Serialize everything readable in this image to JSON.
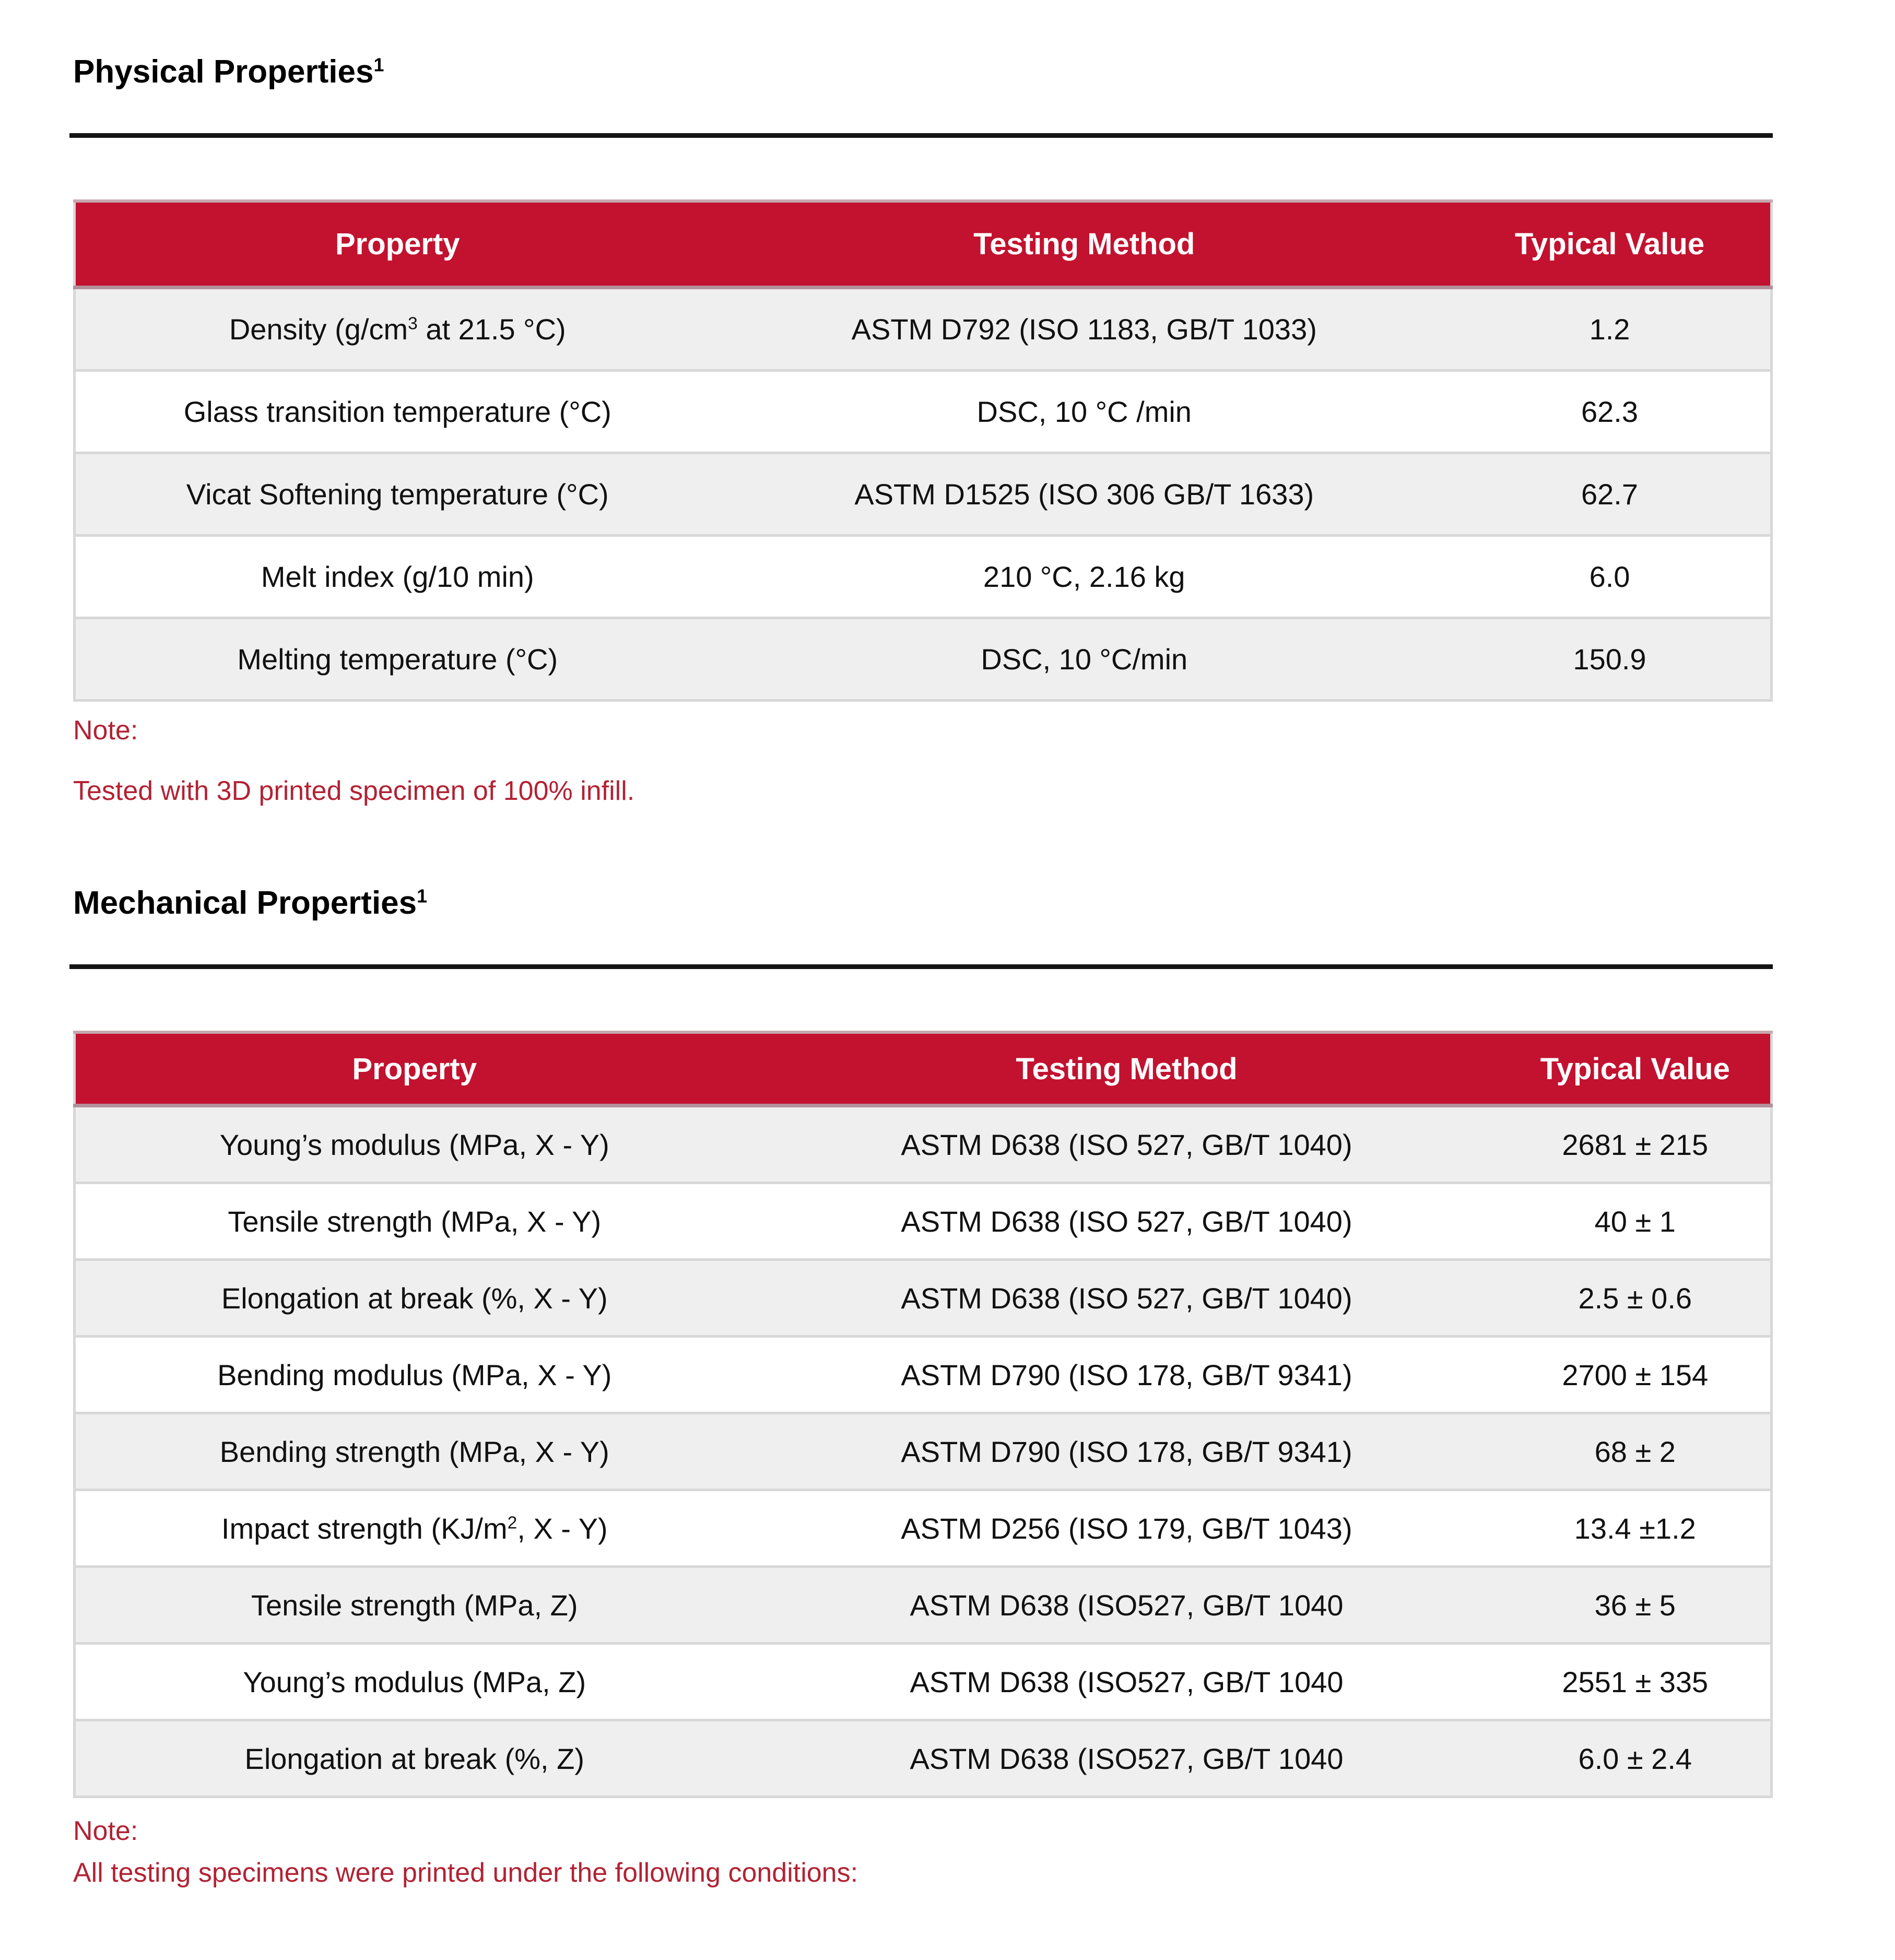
{
  "colors": {
    "header_red": "#C2122F",
    "note_red": "#B22234",
    "row_gray": "#EFEFEF",
    "border_gray": "#D8D8D8",
    "rule_black": "#141414"
  },
  "sections": [
    {
      "heading": "Physical Properties",
      "heading_sup": "1",
      "table": {
        "columns": [
          "Property",
          "Testing Method",
          "Typical Value"
        ],
        "rows": [
          {
            "property": {
              "pre": "Density (g/cm",
              "sup": "3",
              "post": " at 21.5 °C)"
            },
            "method": "ASTM D792 (ISO 1183, GB/T 1033)",
            "value": "1.2"
          },
          {
            "property": {
              "pre": "Glass transition temperature (°C)",
              "sup": "",
              "post": ""
            },
            "method": "DSC, 10 °C /min",
            "value": "62.3"
          },
          {
            "property": {
              "pre": "Vicat Softening temperature (°C)",
              "sup": "",
              "post": ""
            },
            "method": "ASTM D1525 (ISO 306 GB/T 1633)",
            "value": "62.7"
          },
          {
            "property": {
              "pre": "Melt index (g/10 min)",
              "sup": "",
              "post": ""
            },
            "method": "210 °C, 2.16 kg",
            "value": "6.0"
          },
          {
            "property": {
              "pre": "Melting temperature (°C)",
              "sup": "",
              "post": ""
            },
            "method": "DSC, 10 °C/min",
            "value": "150.9"
          }
        ]
      },
      "note_label": "Note:",
      "note_lines": [
        "Tested with 3D printed specimen of 100% infill."
      ]
    },
    {
      "heading": "Mechanical Properties",
      "heading_sup": "1",
      "table": {
        "columns": [
          "Property",
          "Testing Method",
          "Typical Value"
        ],
        "rows": [
          {
            "property": {
              "pre": "Young’s modulus (MPa, X - Y)",
              "sup": "",
              "post": ""
            },
            "method": "ASTM D638 (ISO 527, GB/T 1040)",
            "value": "2681 ± 215"
          },
          {
            "property": {
              "pre": "Tensile strength (MPa, X - Y)",
              "sup": "",
              "post": ""
            },
            "method": "ASTM D638 (ISO 527, GB/T 1040)",
            "value": "40 ± 1"
          },
          {
            "property": {
              "pre": "Elongation at break (%, X - Y)",
              "sup": "",
              "post": ""
            },
            "method": "ASTM D638 (ISO 527, GB/T 1040)",
            "value": "2.5 ± 0.6"
          },
          {
            "property": {
              "pre": "Bending modulus (MPa, X - Y)",
              "sup": "",
              "post": ""
            },
            "method": "ASTM D790 (ISO 178, GB/T 9341)",
            "value": "2700 ± 154"
          },
          {
            "property": {
              "pre": "Bending strength (MPa, X - Y)",
              "sup": "",
              "post": ""
            },
            "method": "ASTM D790 (ISO 178, GB/T 9341)",
            "value": "68 ± 2"
          },
          {
            "property": {
              "pre": "Impact strength (KJ/m",
              "sup": "2",
              "post": ", X - Y)"
            },
            "method": "ASTM D256 (ISO 179, GB/T 1043)",
            "value": "13.4 ±1.2"
          },
          {
            "property": {
              "pre": "Tensile strength (MPa, Z)",
              "sup": "",
              "post": ""
            },
            "method": "ASTM D638 (ISO527, GB/T 1040",
            "value": "36 ± 5"
          },
          {
            "property": {
              "pre": "Young’s modulus (MPa, Z)",
              "sup": "",
              "post": ""
            },
            "method": "ASTM D638 (ISO527, GB/T 1040",
            "value": "2551 ± 335"
          },
          {
            "property": {
              "pre": "Elongation at break (%, Z)",
              "sup": "",
              "post": ""
            },
            "method": "ASTM D638 (ISO527, GB/T 1040",
            "value": "6.0 ± 2.4"
          }
        ]
      },
      "note_label": "Note:",
      "note_lines": [
        "All testing specimens were printed under the following conditions:"
      ]
    }
  ]
}
